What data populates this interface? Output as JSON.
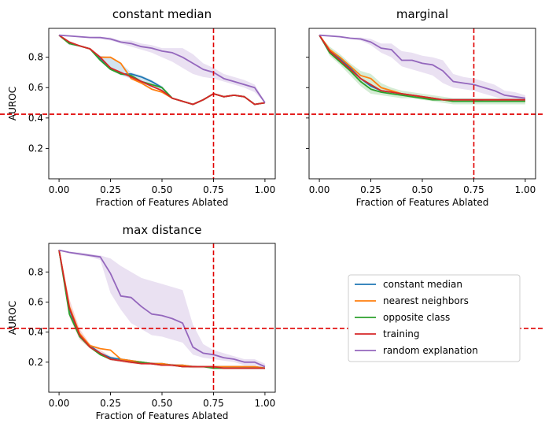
{
  "figure": {
    "legend": [
      "constant median",
      "nearest neighbors",
      "opposite class",
      "training",
      "random explanation"
    ]
  },
  "colors": {
    "constant median": "#1f77b4",
    "nearest neighbors": "#ff7f0e",
    "opposite class": "#2ca02c",
    "training": "#d62728",
    "random explanation": "#9467bd",
    "reference": "#e00000"
  },
  "chart_data": [
    {
      "type": "line",
      "title": "constant median",
      "xlabel": "Fraction of Features Ablated",
      "ylabel": "AUROC",
      "xlim": [
        -0.05,
        1.05
      ],
      "ylim": [
        0.0,
        0.99
      ],
      "xticks": [
        "0.00",
        "0.25",
        "0.50",
        "0.75",
        "1.00"
      ],
      "yticks": [
        "0.2",
        "0.4",
        "0.6",
        "0.8"
      ],
      "show_ytick_labels": true,
      "reference_lines": {
        "x": 0.75,
        "y": 0.425
      },
      "x": [
        0,
        0.05,
        0.1,
        0.15,
        0.2,
        0.25,
        0.3,
        0.35,
        0.4,
        0.45,
        0.5,
        0.55,
        0.6,
        0.65,
        0.7,
        0.75,
        0.8,
        0.85,
        0.9,
        0.95,
        1.0
      ],
      "series": [
        {
          "name": "constant median",
          "values": [
            0.945,
            0.89,
            0.875,
            0.855,
            0.79,
            0.73,
            0.69,
            0.69,
            0.67,
            0.64,
            0.6,
            0.53,
            0.51,
            0.49,
            0.52,
            0.56,
            0.54,
            0.55,
            0.54,
            0.49,
            0.5
          ]
        },
        {
          "name": "nearest neighbors",
          "values": [
            0.945,
            0.89,
            0.875,
            0.855,
            0.8,
            0.8,
            0.76,
            0.66,
            0.63,
            0.59,
            0.57,
            0.53,
            0.51,
            0.49,
            0.52,
            0.56,
            0.54,
            0.55,
            0.54,
            0.49,
            0.5
          ]
        },
        {
          "name": "opposite class",
          "values": [
            0.945,
            0.89,
            0.875,
            0.855,
            0.78,
            0.72,
            0.69,
            0.68,
            0.64,
            0.62,
            0.6,
            0.53,
            0.51,
            0.49,
            0.52,
            0.56,
            0.54,
            0.55,
            0.54,
            0.49,
            0.5
          ]
        },
        {
          "name": "training",
          "values": [
            0.945,
            0.9,
            0.875,
            0.855,
            0.8,
            0.73,
            0.7,
            0.67,
            0.64,
            0.61,
            0.58,
            0.53,
            0.51,
            0.49,
            0.52,
            0.56,
            0.54,
            0.55,
            0.54,
            0.49,
            0.5
          ]
        },
        {
          "name": "random explanation",
          "values": [
            0.945,
            0.94,
            0.935,
            0.93,
            0.93,
            0.92,
            0.9,
            0.89,
            0.87,
            0.86,
            0.84,
            0.83,
            0.8,
            0.76,
            0.72,
            0.7,
            0.66,
            0.64,
            0.62,
            0.6,
            0.5
          ]
        }
      ],
      "bands": [
        {
          "name": "random explanation",
          "lower": [
            0.945,
            0.94,
            0.93,
            0.925,
            0.92,
            0.91,
            0.89,
            0.87,
            0.85,
            0.83,
            0.8,
            0.77,
            0.73,
            0.69,
            0.67,
            0.66,
            0.64,
            0.62,
            0.6,
            0.57,
            0.5
          ],
          "upper": [
            0.945,
            0.945,
            0.94,
            0.935,
            0.935,
            0.93,
            0.91,
            0.91,
            0.89,
            0.88,
            0.86,
            0.86,
            0.86,
            0.82,
            0.76,
            0.73,
            0.69,
            0.67,
            0.65,
            0.62,
            0.51
          ]
        },
        {
          "name": "constant median",
          "lower": [
            0.945,
            0.88,
            0.87,
            0.85,
            0.78,
            0.72,
            0.68,
            0.66,
            0.63,
            0.6,
            0.58,
            0.53,
            0.51,
            0.49,
            0.52,
            0.56,
            0.54,
            0.55,
            0.54,
            0.49,
            0.5
          ],
          "upper": [
            0.945,
            0.9,
            0.88,
            0.86,
            0.81,
            0.8,
            0.76,
            0.7,
            0.68,
            0.65,
            0.61,
            0.53,
            0.51,
            0.49,
            0.52,
            0.56,
            0.54,
            0.55,
            0.54,
            0.49,
            0.5
          ]
        }
      ]
    },
    {
      "type": "line",
      "title": "marginal",
      "xlabel": "Fraction of Features Ablated",
      "ylabel": "",
      "xlim": [
        -0.05,
        1.05
      ],
      "ylim": [
        0.0,
        0.99
      ],
      "xticks": [
        "0.00",
        "0.25",
        "0.50",
        "0.75",
        "1.00"
      ],
      "yticks": [
        "0.2",
        "0.4",
        "0.6",
        "0.8"
      ],
      "show_ytick_labels": false,
      "reference_lines": {
        "x": 0.75,
        "y": 0.425
      },
      "x": [
        0,
        0.05,
        0.1,
        0.15,
        0.2,
        0.25,
        0.3,
        0.35,
        0.4,
        0.45,
        0.5,
        0.55,
        0.6,
        0.65,
        0.7,
        0.75,
        0.8,
        0.85,
        0.9,
        0.95,
        1.0
      ],
      "series": [
        {
          "name": "constant median",
          "values": [
            0.945,
            0.84,
            0.79,
            0.73,
            0.66,
            0.61,
            0.58,
            0.57,
            0.56,
            0.55,
            0.54,
            0.53,
            0.52,
            0.52,
            0.52,
            0.52,
            0.51,
            0.51,
            0.51,
            0.51,
            0.51
          ]
        },
        {
          "name": "nearest neighbors",
          "values": [
            0.945,
            0.85,
            0.8,
            0.74,
            0.68,
            0.66,
            0.6,
            0.58,
            0.56,
            0.55,
            0.54,
            0.53,
            0.52,
            0.51,
            0.51,
            0.51,
            0.51,
            0.51,
            0.51,
            0.51,
            0.51
          ]
        },
        {
          "name": "opposite class",
          "values": [
            0.945,
            0.83,
            0.77,
            0.71,
            0.64,
            0.59,
            0.57,
            0.56,
            0.55,
            0.54,
            0.53,
            0.52,
            0.52,
            0.51,
            0.51,
            0.51,
            0.51,
            0.51,
            0.51,
            0.51,
            0.51
          ]
        },
        {
          "name": "training",
          "values": [
            0.945,
            0.84,
            0.78,
            0.72,
            0.66,
            0.62,
            0.58,
            0.57,
            0.56,
            0.55,
            0.54,
            0.53,
            0.52,
            0.52,
            0.52,
            0.52,
            0.52,
            0.52,
            0.52,
            0.52,
            0.52
          ]
        },
        {
          "name": "random explanation",
          "values": [
            0.945,
            0.94,
            0.935,
            0.925,
            0.92,
            0.9,
            0.86,
            0.85,
            0.78,
            0.78,
            0.76,
            0.75,
            0.71,
            0.64,
            0.63,
            0.62,
            0.6,
            0.58,
            0.55,
            0.54,
            0.53
          ]
        }
      ],
      "bands": [
        {
          "name": "random explanation",
          "lower": [
            0.945,
            0.935,
            0.93,
            0.92,
            0.91,
            0.88,
            0.83,
            0.8,
            0.74,
            0.72,
            0.7,
            0.68,
            0.63,
            0.6,
            0.59,
            0.58,
            0.56,
            0.54,
            0.52,
            0.51,
            0.51
          ],
          "upper": [
            0.945,
            0.945,
            0.94,
            0.93,
            0.93,
            0.92,
            0.89,
            0.89,
            0.84,
            0.83,
            0.81,
            0.8,
            0.78,
            0.69,
            0.67,
            0.66,
            0.64,
            0.62,
            0.58,
            0.57,
            0.55
          ]
        },
        {
          "name": "opposite class",
          "lower": [
            0.945,
            0.81,
            0.75,
            0.68,
            0.61,
            0.56,
            0.55,
            0.54,
            0.53,
            0.53,
            0.52,
            0.51,
            0.5,
            0.49,
            0.49,
            0.49,
            0.49,
            0.49,
            0.49,
            0.49,
            0.49
          ],
          "upper": [
            0.945,
            0.87,
            0.82,
            0.76,
            0.71,
            0.69,
            0.63,
            0.6,
            0.58,
            0.57,
            0.56,
            0.55,
            0.54,
            0.53,
            0.53,
            0.53,
            0.53,
            0.53,
            0.53,
            0.53,
            0.53
          ]
        }
      ]
    },
    {
      "type": "line",
      "title": "max distance",
      "xlabel": "Fraction of Features Ablated",
      "ylabel": "AUROC",
      "xlim": [
        -0.05,
        1.05
      ],
      "ylim": [
        0.0,
        0.99
      ],
      "xticks": [
        "0.00",
        "0.25",
        "0.50",
        "0.75",
        "1.00"
      ],
      "yticks": [
        "0.2",
        "0.4",
        "0.6",
        "0.8"
      ],
      "show_ytick_labels": true,
      "reference_lines": {
        "x": 0.75,
        "y": 0.425
      },
      "x": [
        0,
        0.05,
        0.1,
        0.15,
        0.2,
        0.25,
        0.3,
        0.35,
        0.4,
        0.45,
        0.5,
        0.55,
        0.6,
        0.65,
        0.7,
        0.75,
        0.8,
        0.85,
        0.9,
        0.95,
        1.0
      ],
      "series": [
        {
          "name": "constant median",
          "values": [
            0.945,
            0.55,
            0.38,
            0.31,
            0.26,
            0.23,
            0.22,
            0.21,
            0.2,
            0.19,
            0.19,
            0.18,
            0.18,
            0.17,
            0.17,
            0.17,
            0.17,
            0.17,
            0.17,
            0.17,
            0.16
          ]
        },
        {
          "name": "nearest neighbors",
          "values": [
            0.945,
            0.57,
            0.39,
            0.31,
            0.29,
            0.28,
            0.22,
            0.21,
            0.2,
            0.19,
            0.19,
            0.18,
            0.18,
            0.17,
            0.17,
            0.17,
            0.17,
            0.17,
            0.17,
            0.17,
            0.16
          ]
        },
        {
          "name": "opposite class",
          "values": [
            0.945,
            0.52,
            0.37,
            0.3,
            0.25,
            0.22,
            0.21,
            0.2,
            0.2,
            0.19,
            0.18,
            0.18,
            0.17,
            0.17,
            0.17,
            0.16,
            0.16,
            0.16,
            0.16,
            0.16,
            0.16
          ]
        },
        {
          "name": "training",
          "values": [
            0.945,
            0.56,
            0.38,
            0.3,
            0.26,
            0.22,
            0.21,
            0.2,
            0.19,
            0.19,
            0.18,
            0.18,
            0.17,
            0.17,
            0.17,
            0.17,
            0.16,
            0.16,
            0.16,
            0.16,
            0.16
          ]
        },
        {
          "name": "random explanation",
          "values": [
            0.945,
            0.93,
            0.92,
            0.91,
            0.9,
            0.79,
            0.64,
            0.63,
            0.57,
            0.52,
            0.51,
            0.49,
            0.46,
            0.3,
            0.26,
            0.25,
            0.23,
            0.22,
            0.2,
            0.2,
            0.17
          ]
        }
      ],
      "bands": [
        {
          "name": "random explanation",
          "lower": [
            0.945,
            0.925,
            0.91,
            0.9,
            0.88,
            0.66,
            0.55,
            0.46,
            0.42,
            0.38,
            0.37,
            0.35,
            0.33,
            0.25,
            0.23,
            0.22,
            0.21,
            0.2,
            0.18,
            0.18,
            0.16
          ],
          "upper": [
            0.945,
            0.935,
            0.93,
            0.92,
            0.91,
            0.89,
            0.84,
            0.8,
            0.76,
            0.74,
            0.72,
            0.7,
            0.68,
            0.45,
            0.32,
            0.28,
            0.26,
            0.24,
            0.22,
            0.22,
            0.19
          ]
        },
        {
          "name": "training",
          "lower": [
            0.945,
            0.5,
            0.35,
            0.29,
            0.25,
            0.21,
            0.2,
            0.19,
            0.19,
            0.18,
            0.18,
            0.17,
            0.17,
            0.16,
            0.16,
            0.16,
            0.16,
            0.16,
            0.16,
            0.16,
            0.16
          ],
          "upper": [
            0.945,
            0.62,
            0.42,
            0.32,
            0.28,
            0.24,
            0.22,
            0.21,
            0.2,
            0.2,
            0.19,
            0.19,
            0.18,
            0.18,
            0.17,
            0.17,
            0.17,
            0.17,
            0.17,
            0.17,
            0.17
          ]
        }
      ]
    }
  ]
}
